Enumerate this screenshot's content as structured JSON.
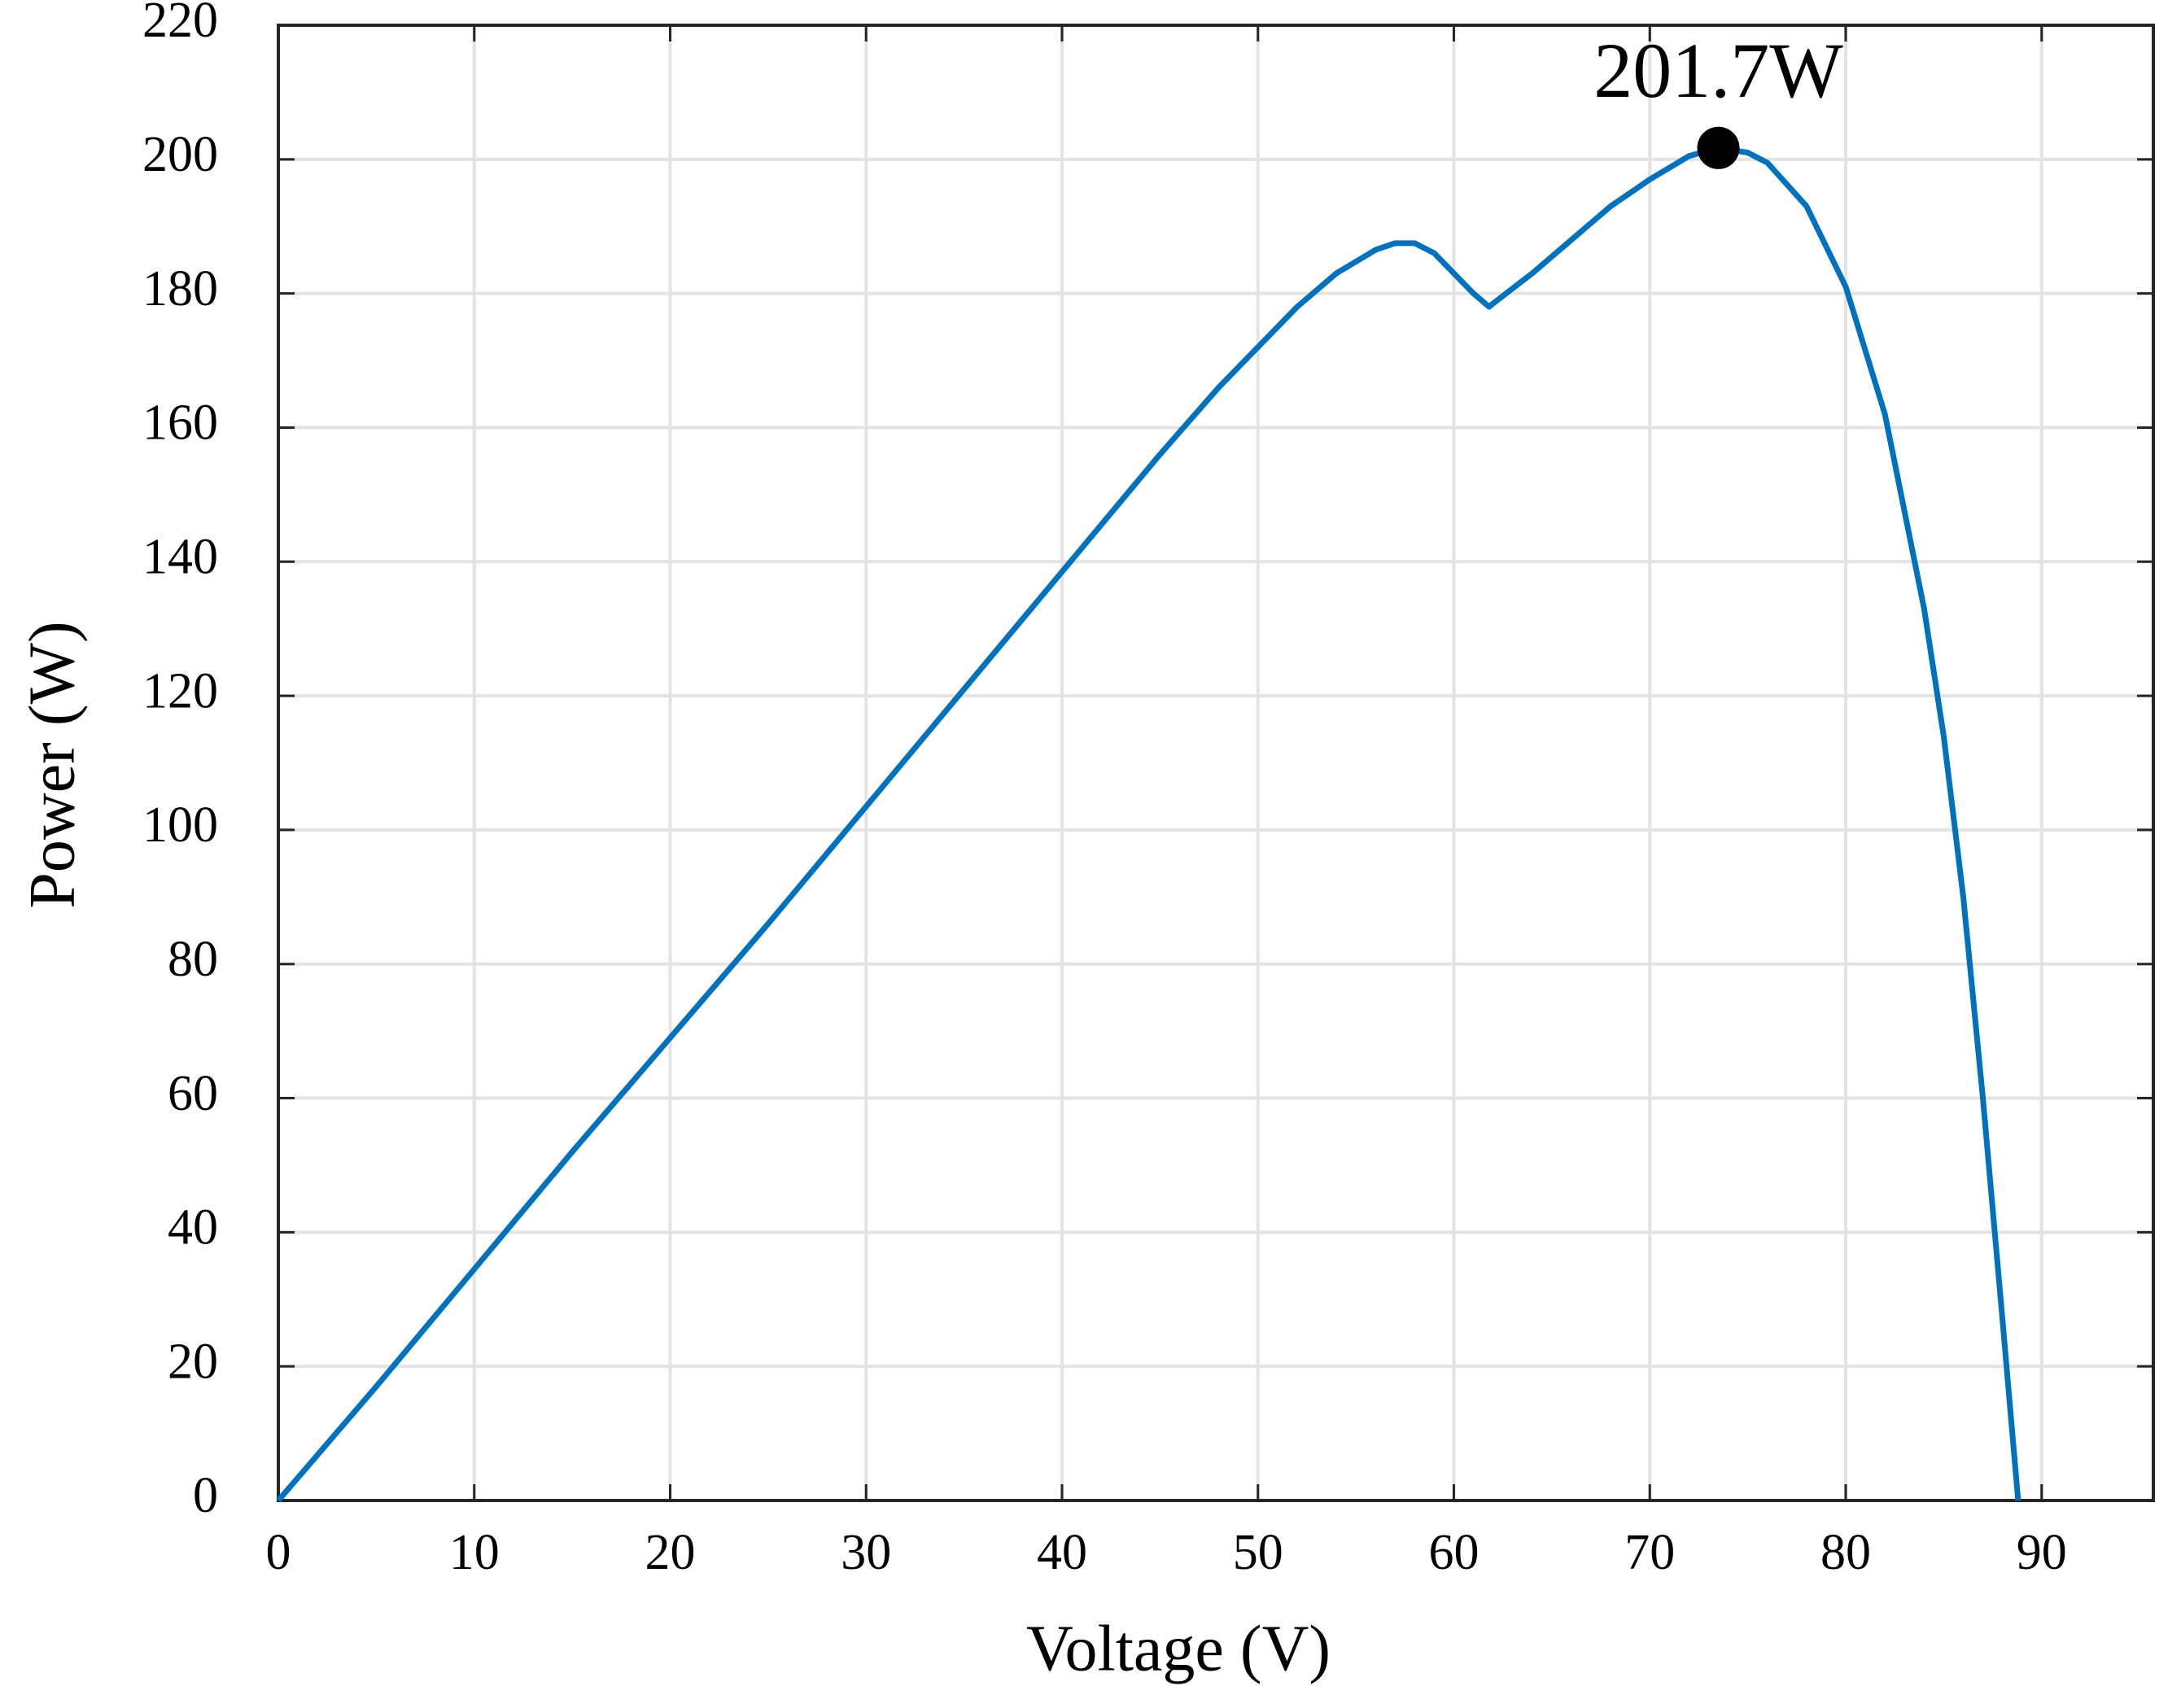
{
  "chart_data": {
    "type": "line",
    "xlabel": "Voltage (V)",
    "ylabel": "Power (W)",
    "x": [
      0,
      5,
      10,
      15,
      20,
      25,
      30,
      35,
      40,
      45,
      48,
      50,
      52,
      54,
      56,
      57,
      58,
      59,
      60,
      61,
      61.8,
      62,
      64,
      66,
      68,
      70,
      72,
      73.5,
      75,
      76,
      78,
      80,
      82,
      84,
      85,
      86,
      87,
      88,
      88.8
    ],
    "series": [
      {
        "color": "#0072bd",
        "values": [
          0,
          17,
          34.5,
          52,
          69,
          86,
          103.5,
          121,
          138.5,
          156,
          166,
          172,
          178,
          183,
          186.5,
          187.5,
          187.5,
          186,
          183,
          180,
          178,
          178.5,
          183,
          188,
          193,
          197,
          200.5,
          201.7,
          201,
          199.5,
          193,
          181,
          162,
          133,
          114,
          90,
          60,
          27,
          0
        ]
      }
    ],
    "annotation": {
      "text": "201.7W",
      "x": 73.5,
      "y": 201.7
    },
    "xlim": [
      0,
      95.7
    ],
    "xticks": [
      0,
      10,
      20,
      30,
      40,
      50,
      60,
      70,
      80,
      90
    ],
    "ylim": [
      0,
      220
    ],
    "yticks": [
      0,
      20,
      40,
      60,
      80,
      100,
      120,
      140,
      160,
      180,
      200,
      220
    ],
    "grid": true
  }
}
